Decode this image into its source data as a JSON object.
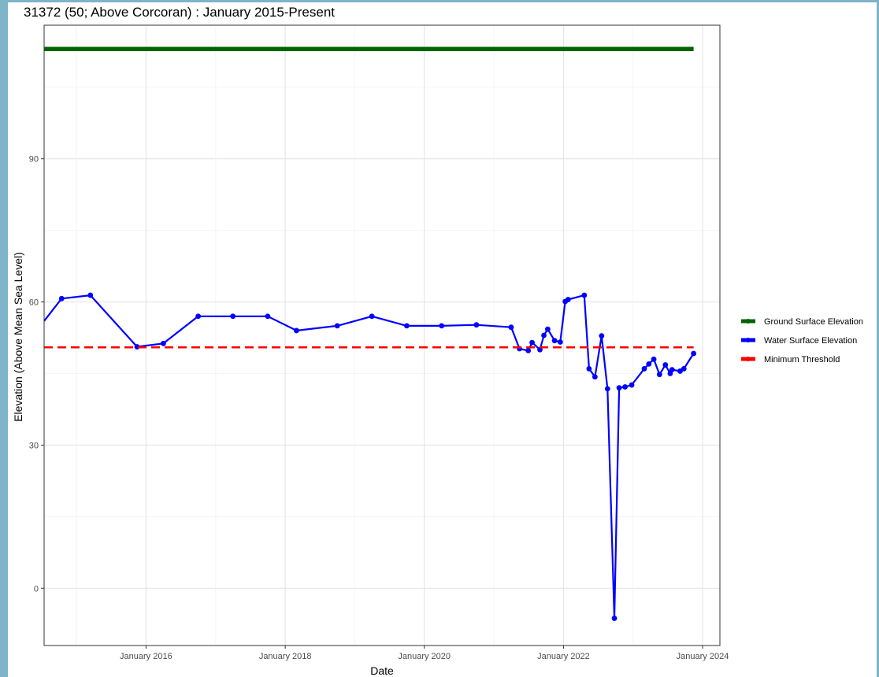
{
  "chart_data": {
    "type": "line",
    "title": "31372 (50; Above Corcoran) : January 2015-Present",
    "xlabel": "Date",
    "ylabel": "Elevation (Above Mean Sea Level)",
    "x_ticks": [
      "January 2016",
      "January 2018",
      "January 2020",
      "January 2022",
      "January 2024"
    ],
    "y_ticks": [
      0,
      30,
      60,
      90
    ],
    "xlim": [
      "2014-07-15",
      "2024-04-01"
    ],
    "ylim": [
      -12,
      118
    ],
    "grid": true,
    "legend_position": "right",
    "series": [
      {
        "name": "Ground Surface Elevation",
        "color": "#006400",
        "style": "solid",
        "x": [
          "2014-07-15",
          "2023-11-15"
        ],
        "y": [
          113,
          113
        ]
      },
      {
        "name": "Water Surface Elevation",
        "color": "#0000ff",
        "style": "solid",
        "markers": true,
        "x": [
          "2014-07-15",
          "2014-10-15",
          "2015-03-15",
          "2015-11-15",
          "2016-04-01",
          "2016-10-01",
          "2017-04-01",
          "2017-10-01",
          "2018-03-01",
          "2018-10-01",
          "2019-04-01",
          "2019-10-01",
          "2020-04-01",
          "2020-10-01",
          "2021-04-01",
          "2021-05-15",
          "2021-06-30",
          "2021-07-20",
          "2021-08-30",
          "2021-09-20",
          "2021-10-10",
          "2021-11-15",
          "2021-12-15",
          "2022-01-10",
          "2022-01-25",
          "2022-04-20",
          "2022-05-15",
          "2022-06-15",
          "2022-07-20",
          "2022-08-20",
          "2022-09-25",
          "2022-10-20",
          "2022-11-20",
          "2022-12-25",
          "2023-03-01",
          "2023-03-25",
          "2023-04-20",
          "2023-05-20",
          "2023-06-20",
          "2023-07-15",
          "2023-07-25",
          "2023-09-05",
          "2023-09-25",
          "2023-11-15"
        ],
        "y": [
          56,
          60.7,
          61.4,
          50.6,
          51.3,
          57,
          57,
          57,
          54,
          55,
          57,
          55,
          55,
          55.2,
          54.7,
          50.2,
          49.8,
          51.5,
          50,
          53,
          54.3,
          51.9,
          51.6,
          60.1,
          60.5,
          61.4,
          46,
          44.3,
          52.9,
          41.8,
          -6.3,
          42,
          42.2,
          42.6,
          46,
          47,
          48,
          44.8,
          46.8,
          45,
          45.8,
          45.5,
          46,
          49.2
        ]
      },
      {
        "name": "Minimum Threshold",
        "color": "#ff0000",
        "style": "dashed",
        "x": [
          "2014-07-15",
          "2023-11-15"
        ],
        "y": [
          50.5,
          50.5
        ]
      }
    ]
  }
}
